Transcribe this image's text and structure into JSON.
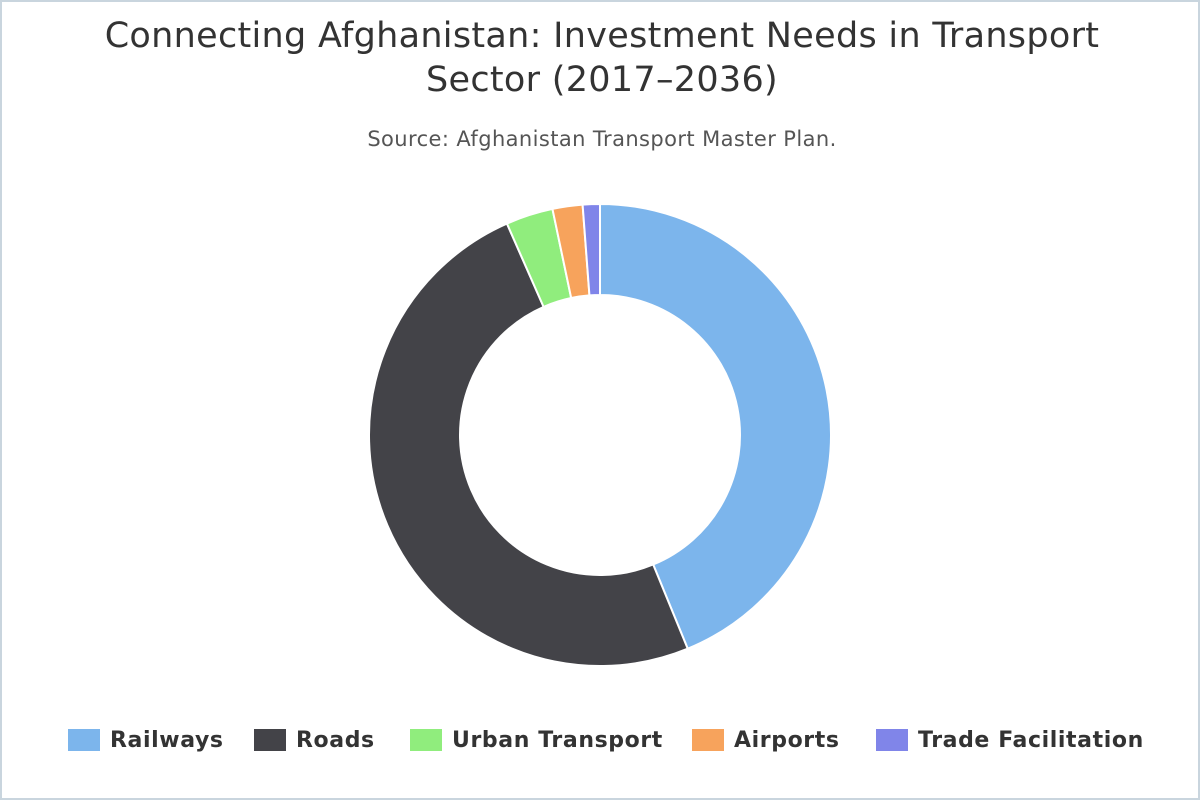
{
  "chart_data": {
    "type": "pie",
    "title": "Connecting Afghanistan: Investment Needs in Transport Sector (2017–2036)",
    "subtitle": "Source: Afghanistan Transport Master Plan.",
    "donut": true,
    "legend_position": "bottom",
    "categories": [
      "Railways",
      "Roads",
      "Urban Transport",
      "Airports",
      "Trade Facilitation"
    ],
    "values": [
      43.8,
      49.6,
      3.3,
      2.1,
      1.2
    ],
    "colors": [
      "#7cb5ec",
      "#434348",
      "#90ed7d",
      "#f7a35c",
      "#8085e9"
    ]
  }
}
